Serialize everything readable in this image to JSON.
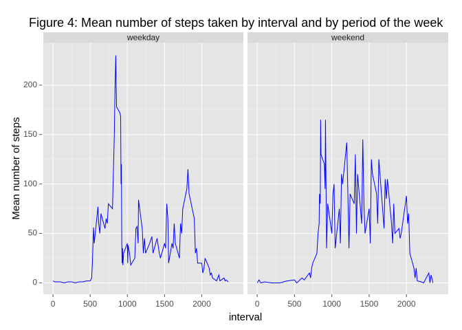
{
  "chart_data": {
    "type": "line",
    "title": "Figure 4: Mean number of steps taken by interval and by period of the week",
    "xlabel": "interval",
    "ylabel": "Mean number of steps",
    "xlim": [
      -130,
      2560
    ],
    "ylim": [
      -11.5,
      243
    ],
    "xticks": [
      0,
      500,
      1000,
      1500,
      2000
    ],
    "yticks": [
      0,
      50,
      100,
      150,
      200
    ],
    "grid": true,
    "series": [
      {
        "name": "weekday",
        "color": "#0000ff",
        "x": [
          0,
          25,
          50,
          100,
          150,
          200,
          250,
          300,
          350,
          400,
          450,
          500,
          520,
          530,
          545,
          555,
          605,
          615,
          630,
          645,
          700,
          715,
          730,
          745,
          800,
          815,
          825,
          835,
          845,
          850,
          855,
          900,
          910,
          915,
          920,
          925,
          930,
          935,
          940,
          950,
          1000,
          1005,
          1010,
          1030,
          1045,
          1100,
          1115,
          1130,
          1145,
          1150,
          1200,
          1215,
          1230,
          1245,
          1300,
          1330,
          1345,
          1400,
          1430,
          1445,
          1500,
          1515,
          1530,
          1545,
          1555,
          1600,
          1615,
          1630,
          1645,
          1700,
          1715,
          1730,
          1745,
          1800,
          1815,
          1830,
          1845,
          1900,
          1915,
          1930,
          1945,
          2000,
          2015,
          2030,
          2045,
          2100,
          2115,
          2130,
          2145,
          2200,
          2215,
          2230,
          2245,
          2300,
          2315,
          2330,
          2355
        ],
        "values": [
          2,
          1,
          1,
          1,
          0,
          1,
          1,
          0,
          1,
          1,
          2,
          2,
          5,
          20,
          56,
          40,
          77,
          60,
          50,
          70,
          55,
          65,
          60,
          80,
          75,
          120,
          150,
          200,
          230,
          200,
          178,
          172,
          168,
          100,
          120,
          40,
          20,
          35,
          18,
          30,
          40,
          20,
          38,
          30,
          18,
          25,
          55,
          57,
          40,
          84,
          55,
          30,
          45,
          30,
          40,
          47,
          30,
          45,
          30,
          25,
          40,
          35,
          80,
          65,
          20,
          40,
          35,
          60,
          40,
          25,
          60,
          50,
          75,
          95,
          115,
          90,
          85,
          65,
          30,
          35,
          20,
          20,
          10,
          15,
          25,
          15,
          8,
          10,
          5,
          2,
          5,
          8,
          2,
          5,
          2,
          3,
          1
        ]
      },
      {
        "name": "weekend",
        "color": "#0000ff",
        "x": [
          0,
          25,
          50,
          100,
          200,
          300,
          400,
          500,
          530,
          600,
          630,
          700,
          715,
          730,
          745,
          800,
          815,
          830,
          835,
          845,
          850,
          855,
          900,
          910,
          915,
          930,
          945,
          1000,
          1015,
          1030,
          1045,
          1100,
          1115,
          1130,
          1145,
          1200,
          1215,
          1230,
          1245,
          1300,
          1315,
          1330,
          1345,
          1400,
          1415,
          1430,
          1445,
          1500,
          1515,
          1530,
          1545,
          1600,
          1615,
          1630,
          1645,
          1700,
          1715,
          1730,
          1745,
          1800,
          1815,
          1830,
          1845,
          1900,
          1915,
          1930,
          2000,
          2015,
          2030,
          2045,
          2100,
          2115,
          2130,
          2145,
          2200,
          2230,
          2300,
          2315,
          2330,
          2355
        ],
        "values": [
          0,
          3,
          0,
          1,
          0,
          0,
          2,
          3,
          0,
          5,
          3,
          10,
          5,
          15,
          20,
          30,
          50,
          60,
          90,
          80,
          165,
          130,
          120,
          95,
          165,
          35,
          80,
          50,
          90,
          100,
          35,
          75,
          40,
          110,
          100,
          142,
          90,
          35,
          90,
          80,
          130,
          50,
          110,
          60,
          145,
          80,
          50,
          75,
          40,
          125,
          110,
          90,
          60,
          125,
          110,
          55,
          105,
          85,
          105,
          60,
          40,
          80,
          50,
          55,
          45,
          50,
          88,
          60,
          70,
          30,
          15,
          5,
          15,
          2,
          1,
          0,
          10,
          0,
          8,
          0
        ]
      }
    ]
  }
}
